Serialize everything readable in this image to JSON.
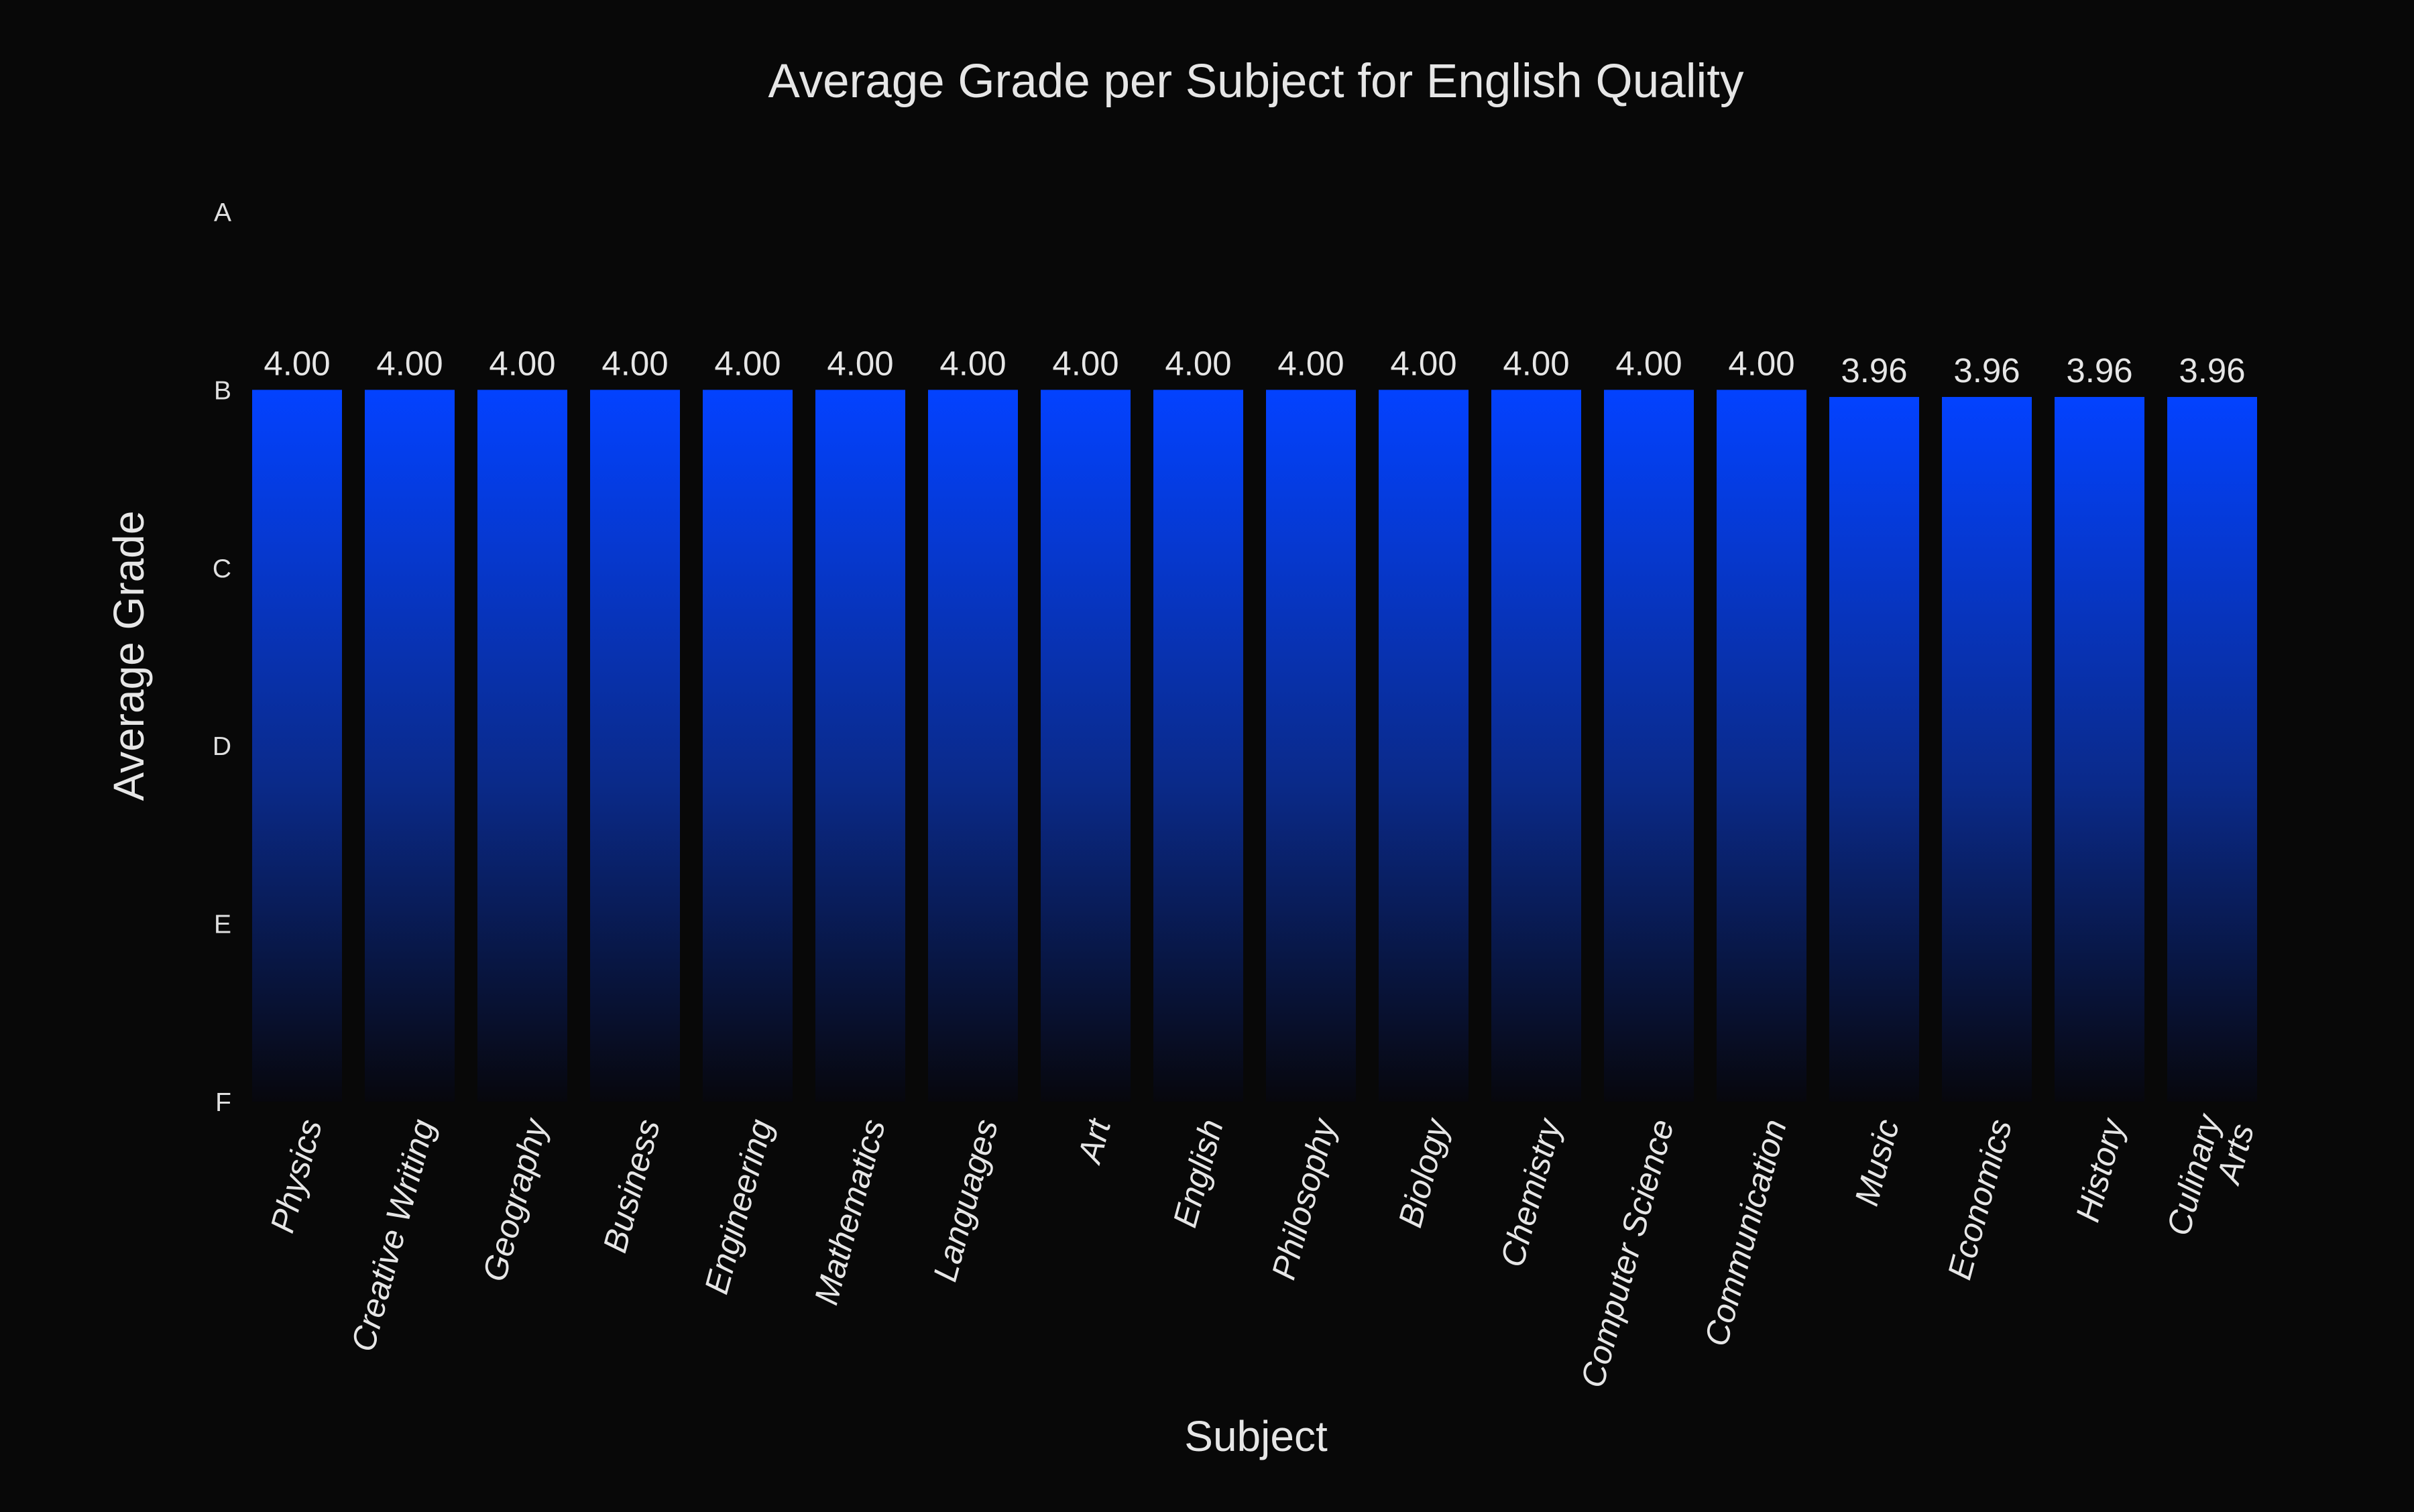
{
  "chart_data": {
    "type": "bar",
    "title": "Average Grade per Subject for English Quality",
    "xlabel": "Subject",
    "ylabel": "Average Grade",
    "categories": [
      "Physics",
      "Creative Writing",
      "Geography",
      "Business",
      "Engineering",
      "Mathematics",
      "Languages",
      "Art",
      "English",
      "Philosophy",
      "Biology",
      "Chemistry",
      "Computer Science",
      "Communication",
      "Music",
      "Economics",
      "History",
      "Culinary Arts"
    ],
    "values": [
      4.0,
      4.0,
      4.0,
      4.0,
      4.0,
      4.0,
      4.0,
      4.0,
      4.0,
      4.0,
      4.0,
      4.0,
      4.0,
      4.0,
      3.96,
      3.96,
      3.96,
      3.96
    ],
    "data_labels": [
      "4.00",
      "4.00",
      "4.00",
      "4.00",
      "4.00",
      "4.00",
      "4.00",
      "4.00",
      "4.00",
      "4.00",
      "4.00",
      "4.00",
      "4.00",
      "4.00",
      "3.96",
      "3.96",
      "3.96",
      "3.96"
    ],
    "y_ticks": [
      {
        "value": 0,
        "label": "F"
      },
      {
        "value": 1,
        "label": "E"
      },
      {
        "value": 2,
        "label": "D"
      },
      {
        "value": 3,
        "label": "C"
      },
      {
        "value": 4,
        "label": "B"
      },
      {
        "value": 5,
        "label": "A"
      }
    ],
    "ylim": [
      0,
      5
    ],
    "grid": false,
    "legend": "none",
    "colors": {
      "background": "#080808",
      "bar_top": "#0342ff",
      "bar_bottom": "#07070d",
      "text": "#e6e6e6"
    }
  }
}
